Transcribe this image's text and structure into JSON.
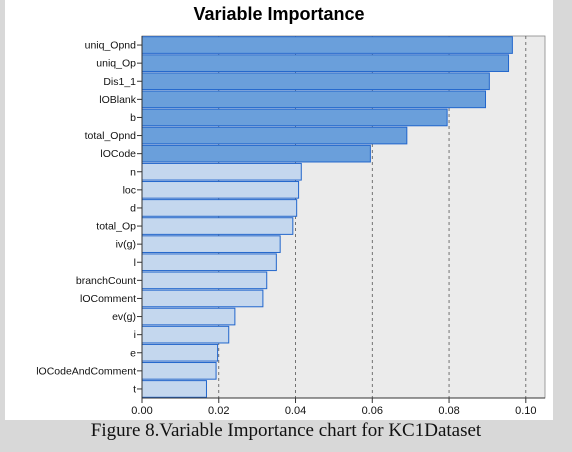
{
  "chart_data": {
    "type": "bar",
    "orientation": "horizontal",
    "title": "Variable Importance",
    "xlabel": "",
    "ylabel": "",
    "xlim": [
      0,
      0.105
    ],
    "xticks": [
      "0.00",
      "0.02",
      "0.04",
      "0.06",
      "0.08",
      "0.10"
    ],
    "grid": "vertical dashed",
    "categories": [
      "uniq_Opnd",
      "uniq_Op",
      "Dis1_1",
      "lOBlank",
      "b",
      "total_Opnd",
      "lOCode",
      "n",
      "loc",
      "d",
      "total_Op",
      "iv(g)",
      "l",
      "branchCount",
      "lOComment",
      "ev(g)",
      "i",
      "e",
      "lOCodeAndComment",
      "t"
    ],
    "values": [
      0.0965,
      0.0955,
      0.0905,
      0.0895,
      0.0795,
      0.069,
      0.0595,
      0.0415,
      0.0408,
      0.0403,
      0.0393,
      0.036,
      0.035,
      0.0325,
      0.0315,
      0.0242,
      0.0226,
      0.0197,
      0.0193,
      0.0168
    ],
    "highlighted_count": 7,
    "colors": {
      "highlight": "#6a9fdb",
      "normal": "#c4d7ee",
      "edge": "#2266cc",
      "plot_bg": "#ebebeb"
    }
  },
  "caption": "Figure 8.Variable Importance chart for KC1Dataset"
}
